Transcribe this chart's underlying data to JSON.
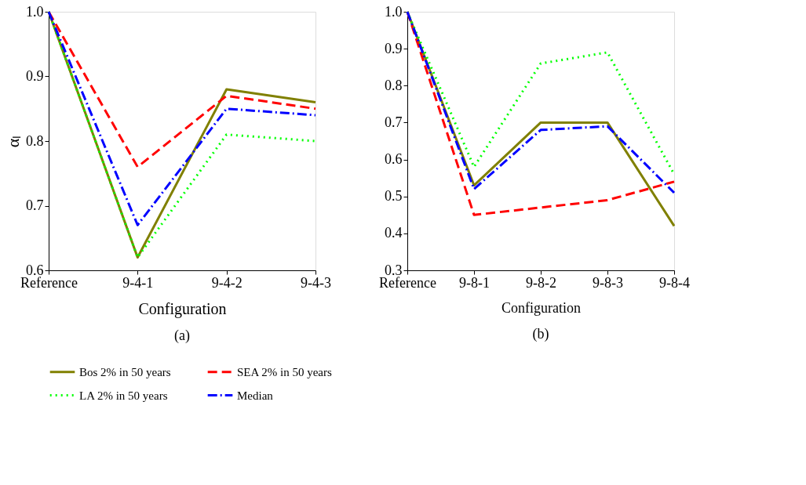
{
  "chart_data": [
    {
      "type": "line",
      "title": "(a)",
      "xlabel": "Configuration",
      "ylabel": "αₗ",
      "categories": [
        "Reference",
        "9-4-1",
        "9-4-2",
        "9-4-3"
      ],
      "ylim": [
        0.6,
        1.0
      ],
      "yticks": [
        0.6,
        0.7,
        0.8,
        0.9,
        {
          "value": 1.0,
          "label": "1.0"
        }
      ],
      "grid": false,
      "legend": "bottom",
      "marker": "none",
      "series": [
        {
          "name": "Bos 2% in 50 years",
          "color": "#808000",
          "line_style": "solid",
          "values": [
            1.0,
            0.62,
            0.88,
            0.86
          ]
        },
        {
          "name": "SEA 2% in 50 years",
          "color": "#ff0000",
          "line_style": "dashed",
          "values": [
            1.0,
            0.76,
            0.87,
            0.85
          ]
        },
        {
          "name": "LA 2% in 50 years",
          "color": "#00ff00",
          "line_style": "dotted",
          "values": [
            1.0,
            0.62,
            0.81,
            0.8
          ]
        },
        {
          "name": "Median",
          "color": "#0000ff",
          "line_style": "dashdot",
          "values": [
            1.0,
            0.67,
            0.85,
            0.84
          ]
        }
      ]
    },
    {
      "type": "line",
      "title": "(b)",
      "xlabel": "Configuration",
      "categories": [
        "Reference",
        "9-8-1",
        "9-8-2",
        "9-8-3",
        "9-8-4"
      ],
      "ylim": [
        0.3,
        1.0
      ],
      "yticks": [
        0.3,
        0.4,
        0.5,
        0.6,
        0.7,
        0.8,
        0.9,
        {
          "value": 1.0,
          "label": "1.0"
        }
      ],
      "grid": false,
      "legend": "bottom",
      "marker": "none",
      "series": [
        {
          "name": "Bos 2% in 50 years",
          "color": "#808000",
          "line_style": "solid",
          "values": [
            1.0,
            0.53,
            0.7,
            0.7,
            0.42
          ]
        },
        {
          "name": "SEA 2% in 50 years",
          "color": "#ff0000",
          "line_style": "dashed",
          "values": [
            1.0,
            0.45,
            0.47,
            0.49,
            0.54
          ]
        },
        {
          "name": "LA 2% in 50 years",
          "color": "#00ff00",
          "line_style": "dotted",
          "values": [
            1.0,
            0.58,
            0.86,
            0.89,
            0.56
          ]
        },
        {
          "name": "Median",
          "color": "#0000ff",
          "line_style": "dashdot",
          "values": [
            1.0,
            0.52,
            0.68,
            0.69,
            0.51
          ]
        }
      ]
    }
  ]
}
